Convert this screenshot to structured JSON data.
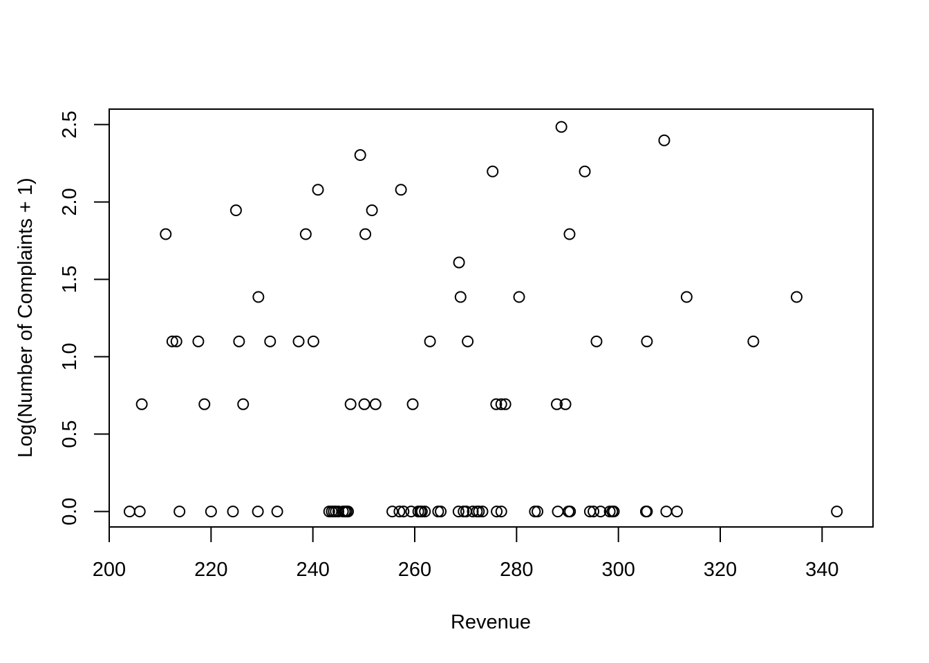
{
  "chart_data": {
    "type": "scatter",
    "title": "",
    "xlabel": "Revenue",
    "ylabel": "Log(Number of Complaints + 1)",
    "xlim": [
      200,
      350
    ],
    "ylim": [
      -0.1,
      2.6
    ],
    "x_ticks": [
      200,
      220,
      240,
      260,
      280,
      300,
      320,
      340
    ],
    "x_tick_labels": [
      "200",
      "220",
      "240",
      "260",
      "280",
      "300",
      "320",
      "340"
    ],
    "y_ticks": [
      0.0,
      0.5,
      1.0,
      1.5,
      2.0,
      2.5
    ],
    "y_tick_labels": [
      "0.0",
      "0.5",
      "1.0",
      "1.5",
      "2.0",
      "2.5"
    ],
    "grid": false,
    "marker": "open-circle",
    "marker_color": "#000000",
    "points": [
      {
        "x": 204.0,
        "y": 0.0
      },
      {
        "x": 206.0,
        "y": 0.0
      },
      {
        "x": 213.8,
        "y": 0.0
      },
      {
        "x": 220.0,
        "y": 0.0
      },
      {
        "x": 224.3,
        "y": 0.0
      },
      {
        "x": 229.2,
        "y": 0.0
      },
      {
        "x": 233.0,
        "y": 0.0
      },
      {
        "x": 243.2,
        "y": 0.0
      },
      {
        "x": 243.7,
        "y": 0.0
      },
      {
        "x": 244.1,
        "y": 0.0
      },
      {
        "x": 244.5,
        "y": 0.0
      },
      {
        "x": 245.0,
        "y": 0.0
      },
      {
        "x": 245.9,
        "y": 0.0
      },
      {
        "x": 246.3,
        "y": 0.0
      },
      {
        "x": 246.6,
        "y": 0.0
      },
      {
        "x": 246.9,
        "y": 0.0
      },
      {
        "x": 255.6,
        "y": 0.0
      },
      {
        "x": 257.0,
        "y": 0.0
      },
      {
        "x": 257.8,
        "y": 0.0
      },
      {
        "x": 259.3,
        "y": 0.0
      },
      {
        "x": 260.7,
        "y": 0.0
      },
      {
        "x": 261.1,
        "y": 0.0
      },
      {
        "x": 261.4,
        "y": 0.0
      },
      {
        "x": 262.0,
        "y": 0.0
      },
      {
        "x": 264.6,
        "y": 0.0
      },
      {
        "x": 265.1,
        "y": 0.0
      },
      {
        "x": 268.6,
        "y": 0.0
      },
      {
        "x": 269.6,
        "y": 0.0
      },
      {
        "x": 270.1,
        "y": 0.0
      },
      {
        "x": 271.4,
        "y": 0.0
      },
      {
        "x": 272.2,
        "y": 0.0
      },
      {
        "x": 272.6,
        "y": 0.0
      },
      {
        "x": 273.3,
        "y": 0.0
      },
      {
        "x": 276.1,
        "y": 0.0
      },
      {
        "x": 277.0,
        "y": 0.0
      },
      {
        "x": 283.6,
        "y": 0.0
      },
      {
        "x": 284.1,
        "y": 0.0
      },
      {
        "x": 288.1,
        "y": 0.0
      },
      {
        "x": 290.2,
        "y": 0.0
      },
      {
        "x": 290.5,
        "y": 0.0
      },
      {
        "x": 294.4,
        "y": 0.0
      },
      {
        "x": 295.1,
        "y": 0.0
      },
      {
        "x": 296.5,
        "y": 0.0
      },
      {
        "x": 298.3,
        "y": 0.0
      },
      {
        "x": 298.8,
        "y": 0.0
      },
      {
        "x": 299.1,
        "y": 0.0
      },
      {
        "x": 305.4,
        "y": 0.0
      },
      {
        "x": 305.6,
        "y": 0.0
      },
      {
        "x": 309.4,
        "y": 0.0
      },
      {
        "x": 311.5,
        "y": 0.0
      },
      {
        "x": 342.9,
        "y": 0.0
      },
      {
        "x": 206.4,
        "y": 0.693
      },
      {
        "x": 218.7,
        "y": 0.693
      },
      {
        "x": 226.3,
        "y": 0.693
      },
      {
        "x": 247.4,
        "y": 0.693
      },
      {
        "x": 250.1,
        "y": 0.693
      },
      {
        "x": 252.3,
        "y": 0.693
      },
      {
        "x": 259.6,
        "y": 0.693
      },
      {
        "x": 276.0,
        "y": 0.693
      },
      {
        "x": 277.0,
        "y": 0.693
      },
      {
        "x": 277.8,
        "y": 0.693
      },
      {
        "x": 287.9,
        "y": 0.693
      },
      {
        "x": 289.6,
        "y": 0.693
      },
      {
        "x": 212.4,
        "y": 1.099
      },
      {
        "x": 213.2,
        "y": 1.099
      },
      {
        "x": 217.5,
        "y": 1.099
      },
      {
        "x": 225.5,
        "y": 1.099
      },
      {
        "x": 231.6,
        "y": 1.099
      },
      {
        "x": 237.2,
        "y": 1.099
      },
      {
        "x": 240.1,
        "y": 1.099
      },
      {
        "x": 263.0,
        "y": 1.099
      },
      {
        "x": 270.4,
        "y": 1.099
      },
      {
        "x": 295.7,
        "y": 1.099
      },
      {
        "x": 305.6,
        "y": 1.099
      },
      {
        "x": 326.5,
        "y": 1.099
      },
      {
        "x": 229.3,
        "y": 1.386
      },
      {
        "x": 269.0,
        "y": 1.386
      },
      {
        "x": 280.5,
        "y": 1.386
      },
      {
        "x": 313.4,
        "y": 1.386
      },
      {
        "x": 335.0,
        "y": 1.386
      },
      {
        "x": 268.7,
        "y": 1.609
      },
      {
        "x": 211.1,
        "y": 1.792
      },
      {
        "x": 238.6,
        "y": 1.792
      },
      {
        "x": 250.3,
        "y": 1.792
      },
      {
        "x": 290.4,
        "y": 1.792
      },
      {
        "x": 224.9,
        "y": 1.946
      },
      {
        "x": 251.6,
        "y": 1.946
      },
      {
        "x": 241.0,
        "y": 2.079
      },
      {
        "x": 257.3,
        "y": 2.079
      },
      {
        "x": 275.3,
        "y": 2.197
      },
      {
        "x": 293.4,
        "y": 2.197
      },
      {
        "x": 249.3,
        "y": 2.303
      },
      {
        "x": 309.0,
        "y": 2.398
      },
      {
        "x": 288.8,
        "y": 2.485
      }
    ]
  }
}
